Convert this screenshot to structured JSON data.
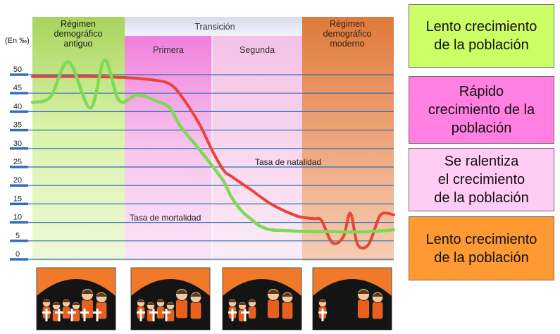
{
  "unit_label": "(En ‰)",
  "phases": {
    "antiguo": "Régimen\ndemográfico\nantiguo",
    "transicion": "Transición",
    "primera": "Primera",
    "segunda": "Segunda",
    "moderno": "Régimen\ndemográfico\nmoderno"
  },
  "curve_labels": {
    "natalidad": "Tasa de natalidad",
    "mortalidad": "Tasa de mortalidad"
  },
  "boxes": [
    {
      "text": "Lento crecimiento\nde la población",
      "color": "#ccff66"
    },
    {
      "text": "Rápido\ncrecimiento de la\npoblación",
      "color": "#ff80e0"
    },
    {
      "text": "Se ralentiza\nel crecimiento\nde la población",
      "color": "#ffccf5"
    },
    {
      "text": "Lento crecimiento\nde la población",
      "color": "#ff9933"
    }
  ],
  "colors": {
    "natalidad": "#e8443a",
    "mortalidad": "#7ed957",
    "grid": "#2f6fb5",
    "antiguo_bg": "#c9ec8a",
    "transicion_header": "#e4e6f4",
    "primera_bg": "#f39be0",
    "segunda_bg": "#f6cde9",
    "moderno_bg": "#e8965a"
  },
  "chart_data": {
    "type": "line",
    "ylabel": "(En ‰)",
    "yticks": [
      0,
      5,
      10,
      15,
      20,
      25,
      30,
      35,
      40,
      45,
      50
    ],
    "ylim": [
      0,
      50
    ],
    "x_stage": [
      0,
      0.05,
      0.1,
      0.16,
      0.2,
      0.24,
      0.29,
      0.34,
      0.38,
      0.41,
      0.46,
      0.5,
      0.53,
      0.55,
      0.58,
      0.61,
      0.63,
      0.66,
      0.7,
      0.74,
      0.78,
      0.8,
      0.83,
      0.86,
      0.88,
      0.9,
      0.93,
      0.96,
      0.98,
      1.0
    ],
    "series": [
      {
        "name": "Tasa de natalidad",
        "values": [
          49.5,
          49.5,
          49.5,
          49.5,
          49.4,
          49.3,
          49,
          48.5,
          47.5,
          44.5,
          37,
          29,
          24,
          22.5,
          20.5,
          18.5,
          17,
          15,
          13,
          11.5,
          11,
          10.5,
          4.5,
          6,
          12.5,
          4,
          4,
          11.5,
          12.5,
          12
        ]
      },
      {
        "name": "Tasa de mortalidad",
        "values": [
          42.5,
          44,
          53.5,
          41,
          54,
          43,
          44.5,
          43,
          41,
          36,
          30,
          25,
          21,
          17,
          13,
          10.5,
          9,
          8,
          7.8,
          7.6,
          7.5,
          7.5,
          7.5,
          7.4,
          7.4,
          7.4,
          7.5,
          7.7,
          7.8,
          8
        ]
      }
    ]
  }
}
